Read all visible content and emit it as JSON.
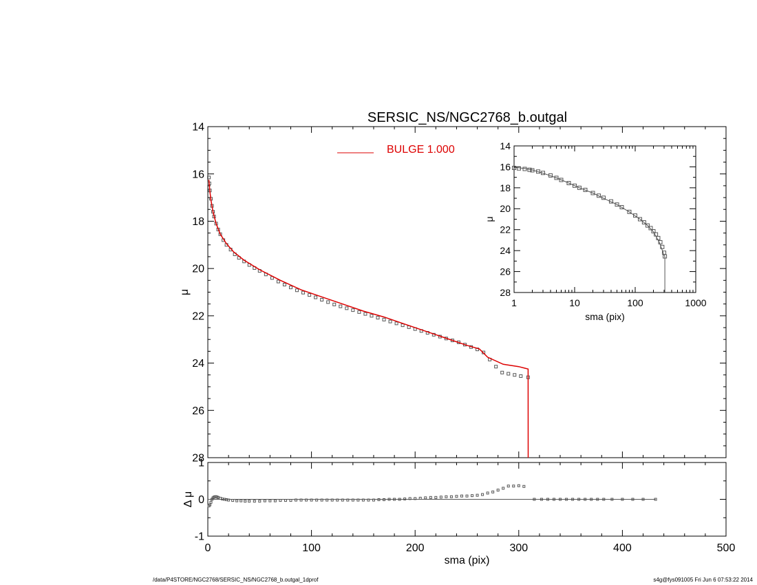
{
  "title": "SERSIC_NS/NGC2768_b.outgal",
  "footer": {
    "left": "/data/P4STORE/NGC2768/SERSIC_NS/NGC2768_b.outgal_1dprof",
    "right": "s4g@fys091005  Fri Jun  6 07:53:22 2014"
  },
  "colors": {
    "model": "#dd0000",
    "data": "#555555",
    "axes": "#000000"
  },
  "chart_data": [
    {
      "id": "main",
      "type": "scatter",
      "title": "SERSIC_NS/NGC2768_b.outgal",
      "xlabel": "",
      "ylabel": "μ",
      "xlim": [
        0,
        500
      ],
      "ylim": [
        28,
        14
      ],
      "yticks": [
        14,
        16,
        18,
        20,
        22,
        24,
        26,
        28
      ],
      "legend": {
        "label": "BULGE  1.000",
        "placement": "top-center",
        "color": "#dd0000"
      },
      "series": [
        {
          "kind": "model-line",
          "x": [
            1,
            2,
            3,
            5,
            8,
            12,
            18,
            25,
            35,
            50,
            70,
            90,
            110,
            130,
            150,
            170,
            190,
            210,
            230,
            250,
            262,
            270,
            285,
            300,
            309,
            309.1
          ],
          "y": [
            16.25,
            16.75,
            17.1,
            17.6,
            18.1,
            18.55,
            18.95,
            19.3,
            19.65,
            20.05,
            20.5,
            20.9,
            21.2,
            21.5,
            21.8,
            22.05,
            22.35,
            22.65,
            22.95,
            23.25,
            23.4,
            23.75,
            24.05,
            24.15,
            24.25,
            28
          ]
        },
        {
          "kind": "data-points",
          "x": [
            1,
            1.5,
            2,
            3,
            4,
            5,
            6,
            8,
            10,
            12,
            15,
            18,
            22,
            26,
            30,
            35,
            40,
            45,
            50,
            56,
            62,
            68,
            74,
            80,
            86,
            92,
            98,
            104,
            110,
            116,
            122,
            128,
            134,
            140,
            146,
            152,
            158,
            164,
            170,
            176,
            182,
            188,
            194,
            200,
            206,
            212,
            218,
            224,
            230,
            236,
            242,
            248,
            254,
            260,
            266,
            272,
            278,
            284,
            290,
            296,
            302,
            309
          ],
          "y": [
            16.15,
            16.4,
            16.7,
            17.05,
            17.35,
            17.6,
            17.8,
            18.1,
            18.35,
            18.55,
            18.8,
            19.0,
            19.2,
            19.4,
            19.55,
            19.7,
            19.85,
            19.98,
            20.1,
            20.25,
            20.4,
            20.55,
            20.68,
            20.8,
            20.92,
            21.02,
            21.12,
            21.22,
            21.32,
            21.42,
            21.52,
            21.6,
            21.68,
            21.76,
            21.84,
            21.92,
            22.0,
            22.08,
            22.16,
            22.24,
            22.32,
            22.4,
            22.48,
            22.56,
            22.64,
            22.72,
            22.8,
            22.88,
            22.96,
            23.04,
            23.12,
            23.22,
            23.32,
            23.42,
            23.55,
            23.85,
            24.15,
            24.4,
            24.45,
            24.5,
            24.55,
            24.6
          ]
        }
      ]
    },
    {
      "id": "residual",
      "type": "scatter",
      "xlabel": "sma (pix)",
      "ylabel": "Δ μ",
      "xlim": [
        0,
        500
      ],
      "ylim": [
        -1,
        1
      ],
      "xticks": [
        0,
        100,
        200,
        300,
        400,
        500
      ],
      "yticks": [
        -1,
        0,
        1
      ],
      "series": [
        {
          "kind": "residual-points",
          "x": [
            1,
            2,
            3,
            4,
            5,
            6,
            7,
            8,
            9,
            10,
            12,
            14,
            16,
            18,
            20,
            24,
            28,
            32,
            36,
            40,
            45,
            50,
            55,
            60,
            65,
            70,
            75,
            80,
            85,
            90,
            95,
            100,
            105,
            110,
            115,
            120,
            125,
            130,
            135,
            140,
            145,
            150,
            155,
            160,
            165,
            170,
            175,
            180,
            185,
            190,
            195,
            200,
            205,
            210,
            215,
            220,
            225,
            230,
            235,
            240,
            245,
            250,
            255,
            260,
            265,
            270,
            275,
            280,
            285,
            290,
            295,
            300,
            305,
            315,
            322,
            328,
            334,
            340,
            346,
            352,
            358,
            364,
            370,
            376,
            382,
            390,
            400,
            410,
            420,
            432
          ],
          "y": [
            -0.18,
            -0.15,
            -0.08,
            0.0,
            0.04,
            0.06,
            0.07,
            0.07,
            0.06,
            0.05,
            0.03,
            0.01,
            0.0,
            -0.01,
            -0.02,
            -0.03,
            -0.04,
            -0.04,
            -0.05,
            -0.05,
            -0.05,
            -0.05,
            -0.04,
            -0.04,
            -0.04,
            -0.03,
            -0.03,
            -0.03,
            -0.02,
            -0.02,
            -0.02,
            -0.02,
            -0.02,
            -0.02,
            -0.02,
            -0.02,
            -0.02,
            -0.02,
            -0.02,
            -0.02,
            -0.02,
            -0.02,
            -0.02,
            -0.02,
            -0.01,
            -0.01,
            0.0,
            0.0,
            0.0,
            0.01,
            0.02,
            0.02,
            0.03,
            0.04,
            0.05,
            0.05,
            0.06,
            0.07,
            0.07,
            0.08,
            0.09,
            0.09,
            0.1,
            0.11,
            0.13,
            0.17,
            0.2,
            0.25,
            0.3,
            0.36,
            0.36,
            0.37,
            0.35,
            0.0,
            0.0,
            0.0,
            0.0,
            0.0,
            0.0,
            0.0,
            0.0,
            0.0,
            0.0,
            0.0,
            0.0,
            0.0,
            0.0,
            0.0,
            0.0,
            0.0
          ]
        }
      ]
    },
    {
      "id": "inset",
      "type": "scatter",
      "xlabel": "sma (pix)",
      "ylabel": "μ",
      "xscale": "log",
      "xlim": [
        1,
        1000
      ],
      "ylim": [
        28,
        14
      ],
      "xticks": [
        1,
        10,
        100,
        1000
      ],
      "xticklabels": [
        "1",
        "10",
        "100",
        "1000"
      ],
      "yticks": [
        14,
        16,
        18,
        20,
        22,
        24,
        26,
        28
      ],
      "series": [
        {
          "kind": "model-line",
          "x": [
            1,
            1.5,
            2,
            3,
            5,
            8,
            12,
            20,
            30,
            50,
            80,
            120,
            160,
            200,
            250,
            290,
            309,
            309.1
          ],
          "y": [
            16.05,
            16.15,
            16.3,
            16.6,
            17.05,
            17.55,
            18.0,
            18.5,
            19.0,
            19.6,
            20.3,
            21.0,
            21.6,
            22.2,
            23.2,
            24.2,
            24.6,
            28
          ]
        },
        {
          "kind": "data-points",
          "x": [
            1,
            1.2,
            1.5,
            1.8,
            2,
            2.5,
            3,
            4,
            5,
            6,
            8,
            10,
            12,
            15,
            20,
            25,
            30,
            40,
            50,
            60,
            80,
            100,
            120,
            140,
            160,
            180,
            200,
            220,
            240,
            260,
            280,
            300,
            309
          ],
          "y": [
            16.1,
            16.15,
            16.2,
            16.28,
            16.33,
            16.45,
            16.58,
            16.82,
            17.05,
            17.25,
            17.55,
            17.8,
            18.0,
            18.2,
            18.5,
            18.75,
            18.95,
            19.3,
            19.6,
            19.85,
            20.3,
            20.65,
            21.0,
            21.3,
            21.6,
            21.85,
            22.15,
            22.45,
            22.8,
            23.2,
            23.65,
            24.2,
            24.55
          ]
        }
      ]
    }
  ]
}
